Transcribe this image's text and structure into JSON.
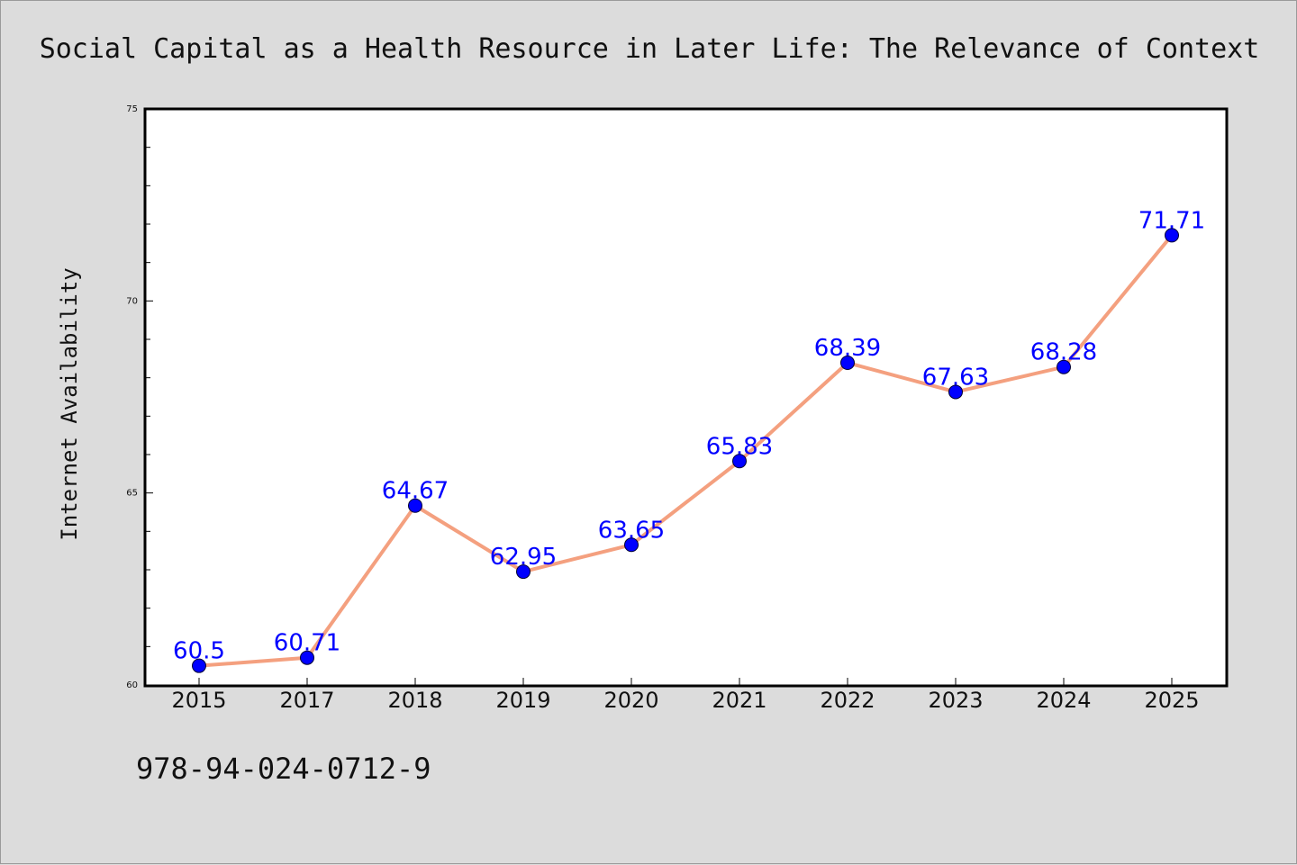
{
  "chart_data": {
    "type": "line",
    "title": "Social Capital as a Health Resource in Later Life: The Relevance of Context",
    "ylabel": "Internet Availability",
    "xlabel": "",
    "categories": [
      "2015",
      "2017",
      "2018",
      "2019",
      "2020",
      "2021",
      "2022",
      "2023",
      "2024",
      "2025"
    ],
    "series": [
      {
        "values": [
          60.5,
          60.71,
          64.67,
          62.95,
          63.65,
          65.83,
          68.39,
          67.63,
          68.28,
          71.71
        ],
        "line_color": "#f4a07f",
        "marker_color": "#0000ff"
      }
    ],
    "data_labels": [
      "60.5",
      "60.71",
      "64.67",
      "62.95",
      "63.65",
      "65.83",
      "68.39",
      "67.63",
      "68.28",
      "71.71"
    ],
    "ylim": [
      60,
      75
    ],
    "yticks": [
      "60",
      "65",
      "70",
      "75"
    ],
    "grid": false,
    "legend": "none"
  },
  "footer": {
    "isbn": "978-94-024-0712-9"
  },
  "colors": {
    "background": "#dcdcdc",
    "plot_background": "#ffffff",
    "line": "#f4a07f",
    "marker": "#0000ff",
    "label": "#0000ff"
  }
}
